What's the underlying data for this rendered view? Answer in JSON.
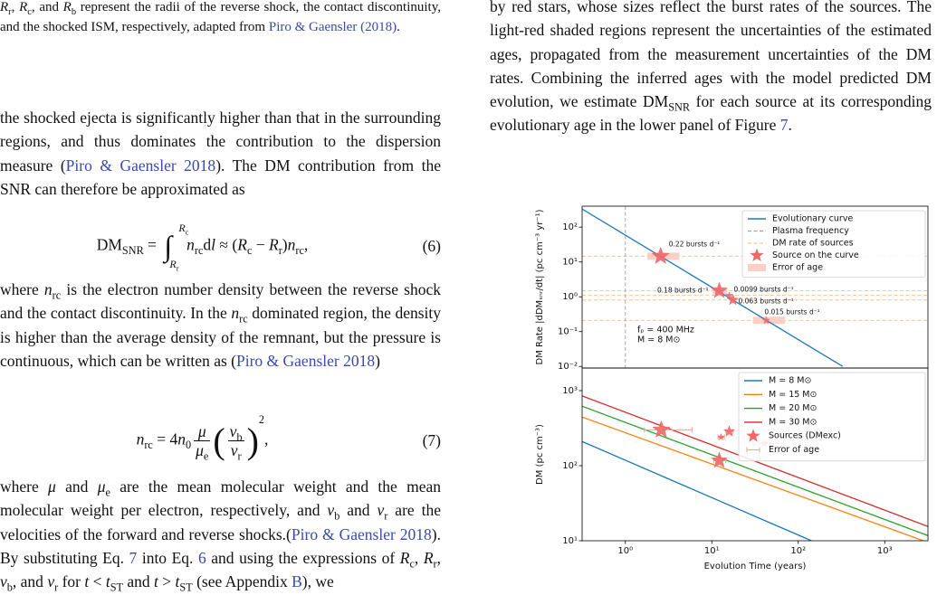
{
  "left": {
    "caption": [
      {
        "i": "R"
      },
      {
        "sub": "r"
      },
      ", ",
      {
        "i": "R"
      },
      {
        "sub": "c"
      },
      ", and ",
      {
        "i": "R"
      },
      {
        "sub": "b"
      },
      " represent the radii of the reverse shock, the contact discontinuity, and the shocked ISM, respectively, adapted from ",
      {
        "link": "Piro & Gaensler (2018)"
      },
      "."
    ],
    "p1": [
      "the shocked ejecta is significantly higher than that in the surrounding regions, and thus dominates the contribution to the dispersion measure (",
      {
        "link": "Piro & Gaensler 2018"
      },
      "). The DM contribution from the SNR can therefore be approximated as"
    ],
    "eq6": {
      "parts": [
        "DM",
        {
          "sub": "SNR"
        },
        " = ",
        {
          "int": {
            "sym": "∫",
            "up": [
              {
                "i": "R"
              },
              {
                "sub": "c"
              }
            ],
            "lo": [
              {
                "i": "R"
              },
              {
                "sub": "r"
              }
            ]
          }
        },
        {
          "i": "n"
        },
        {
          "sub": "rc"
        },
        "d",
        {
          "i": "l"
        },
        " ≈ (",
        {
          "i": "R"
        },
        {
          "sub": "c"
        },
        " − ",
        {
          "i": "R"
        },
        {
          "sub": "r"
        },
        ")",
        {
          "i": "n"
        },
        {
          "sub": "rc"
        },
        ","
      ],
      "number": "(6)"
    },
    "p2": [
      "where ",
      {
        "i": "n"
      },
      {
        "sub": "rc"
      },
      " is the electron number density between the reverse shock and the contact discontinuity. In the ",
      {
        "i": "n"
      },
      {
        "sub": "rc"
      },
      " dominated region, the density is higher than the average density of the remnant, but the pressure is continuous, which can be written as (",
      {
        "link": "Piro & Gaensler 2018"
      },
      ")"
    ],
    "eq7": {
      "parts": [
        {
          "i": "n"
        },
        {
          "sub": "rc"
        },
        " = 4",
        {
          "i": "n"
        },
        {
          "sub": "0"
        },
        {
          "frac": [
            [
              {
                "i": "μ"
              }
            ],
            [
              {
                "i": "μ"
              },
              {
                "sub": "e"
              }
            ]
          ]
        },
        {
          "big": "("
        },
        {
          "frac": [
            [
              {
                "i": "v"
              },
              {
                "sub": "b"
              }
            ],
            [
              {
                "i": "v"
              },
              {
                "sub": "r"
              }
            ]
          ]
        },
        {
          "big": ")"
        },
        {
          "sup": "2"
        },
        ","
      ],
      "number": "(7)"
    },
    "p3": [
      "where ",
      {
        "i": "μ"
      },
      " and ",
      {
        "i": "μ"
      },
      {
        "sub": "e"
      },
      " are the mean molecular weight and the mean molecular weight per electron, respectively, and ",
      {
        "i": "v"
      },
      {
        "sub": "b"
      },
      " and ",
      {
        "i": "v"
      },
      {
        "sub": "r"
      },
      " are the velocities of the forward and reverse shocks.(",
      {
        "link": "Piro & Gaensler 2018"
      },
      "). By substituting Eq. ",
      {
        "link": "7"
      },
      " into Eq. ",
      {
        "link": "6"
      },
      " and using the expressions of ",
      {
        "i": "R"
      },
      {
        "sub": "c"
      },
      ", ",
      {
        "i": "R"
      },
      {
        "sub": "r"
      },
      ", ",
      {
        "i": "v"
      },
      {
        "sub": "b"
      },
      ", and ",
      {
        "i": "v"
      },
      {
        "sub": "r"
      },
      " for ",
      {
        "i": "t"
      },
      " < ",
      {
        "i": "t"
      },
      {
        "sub": "ST"
      },
      " and ",
      {
        "i": "t"
      },
      " > ",
      {
        "i": "t"
      },
      {
        "sub": "ST"
      },
      " (see Appendix ",
      {
        "link": "B"
      },
      "), we"
    ]
  },
  "right": {
    "p1": [
      "by red stars, whose sizes reflect the burst rates of the sources. The light-red shaded regions represent the uncertainties of the estimated ages, propagated from the measurement uncertainties of the DM rates. Combining the inferred ages with the model predicted DM evolution, we estimate DM",
      {
        "sub": "SNR"
      },
      " for each source at its corresponding evolutionary age in the lower panel of Figure ",
      {
        "link": "7"
      },
      "."
    ]
  },
  "chart_data": [
    {
      "type": "line",
      "log_x": true,
      "log_y": true,
      "xlim": [
        0.316,
        3162
      ],
      "ylim": [
        0.009,
        400
      ],
      "yticks": [
        {
          "value": 0.01,
          "label": "10⁻²"
        },
        {
          "value": 0.1,
          "label": "10⁻¹"
        },
        {
          "value": 1,
          "label": "10⁰"
        },
        {
          "value": 10,
          "label": "10¹"
        },
        {
          "value": 100,
          "label": "10²"
        }
      ],
      "y_label": "DM Rate |dDMₛₙᵣ/dt| (pc cm⁻³ yr⁻¹)",
      "series": [
        {
          "name": "Evolutionary curve",
          "color": "#1f77b4",
          "x": [
            0.316,
            1,
            10,
            100,
            326
          ],
          "values": [
            332,
            59,
            1.87,
            0.059,
            0.01
          ]
        }
      ],
      "vline": {
        "name": "Plasma frequency",
        "x": 1,
        "color": "#a0a4aa"
      },
      "sources": {
        "name": "Source on the curve",
        "color": "#ee6a6a",
        "x": [
          2.56,
          12.2,
          15.9,
          17.5,
          42.6
        ],
        "values": [
          14.6,
          1.49,
          1.1,
          0.81,
          0.21
        ],
        "sizes": [
          0.22,
          0.18,
          0.0099,
          0.063,
          0.015
        ],
        "size_labels": [
          "0.22 bursts d⁻¹",
          "0.18 bursts d⁻¹",
          "0.0099 bursts d⁻¹",
          "0.063 bursts d⁻¹",
          "0.015 bursts d⁻¹"
        ],
        "age_ranges": [
          [
            1.8,
            4.2
          ],
          [
            10.2,
            15
          ],
          null,
          null,
          [
            30,
            70
          ]
        ],
        "hline_name": "DM rate of sources",
        "hline_color": "#f6c59c",
        "age_error_name": "Error of age",
        "age_color": "#fbcfc6"
      },
      "annotation": [
        "fₚ = 400 MHz",
        "M = 8 M⊙"
      ]
    },
    {
      "type": "line",
      "log_x": true,
      "log_y": true,
      "xlim": [
        0.316,
        3162
      ],
      "ylim": [
        10,
        2000
      ],
      "xticks": [
        {
          "value": 1,
          "label": "10⁰"
        },
        {
          "value": 10,
          "label": "10¹"
        },
        {
          "value": 100,
          "label": "10²"
        },
        {
          "value": 1000,
          "label": "10³"
        }
      ],
      "yticks": [
        {
          "value": 10,
          "label": "10¹"
        },
        {
          "value": 100,
          "label": "10²"
        },
        {
          "value": 1000,
          "label": "10³"
        }
      ],
      "x_label": "Evolution Time (years)",
      "y_label": "DM (pc cm⁻³)",
      "series": [
        {
          "name": "M = 8 M⊙",
          "color": "#1f77b4",
          "x": [
            0.316,
            142
          ],
          "values": [
            210,
            10
          ]
        },
        {
          "name": "M = 15 M⊙",
          "color": "#ff7f0e",
          "x": [
            0.316,
            2800
          ],
          "values": [
            445,
            10
          ]
        },
        {
          "name": "M = 20 M⊙",
          "color": "#2ca02c",
          "x": [
            0.316,
            3162
          ],
          "values": [
            620,
            11.7
          ]
        },
        {
          "name": "M = 30 M⊙",
          "color": "#d62728",
          "x": [
            0.316,
            3162
          ],
          "values": [
            850,
            15.5
          ]
        }
      ],
      "sources": {
        "name": "Sources (DMexc)",
        "color": "#ee6a6a",
        "x": [
          2.6,
          12.2,
          12.8,
          15.9,
          40.6
        ],
        "values": [
          300,
          117,
          240,
          285,
          198
        ],
        "age_ranges": [
          [
            1.66,
            5.9
          ],
          [
            10.5,
            14.5
          ],
          [
            11.8,
            14
          ],
          [
            14.6,
            17.6
          ],
          [
            30,
            67
          ]
        ],
        "age_error_name": "Error of age"
      }
    }
  ]
}
